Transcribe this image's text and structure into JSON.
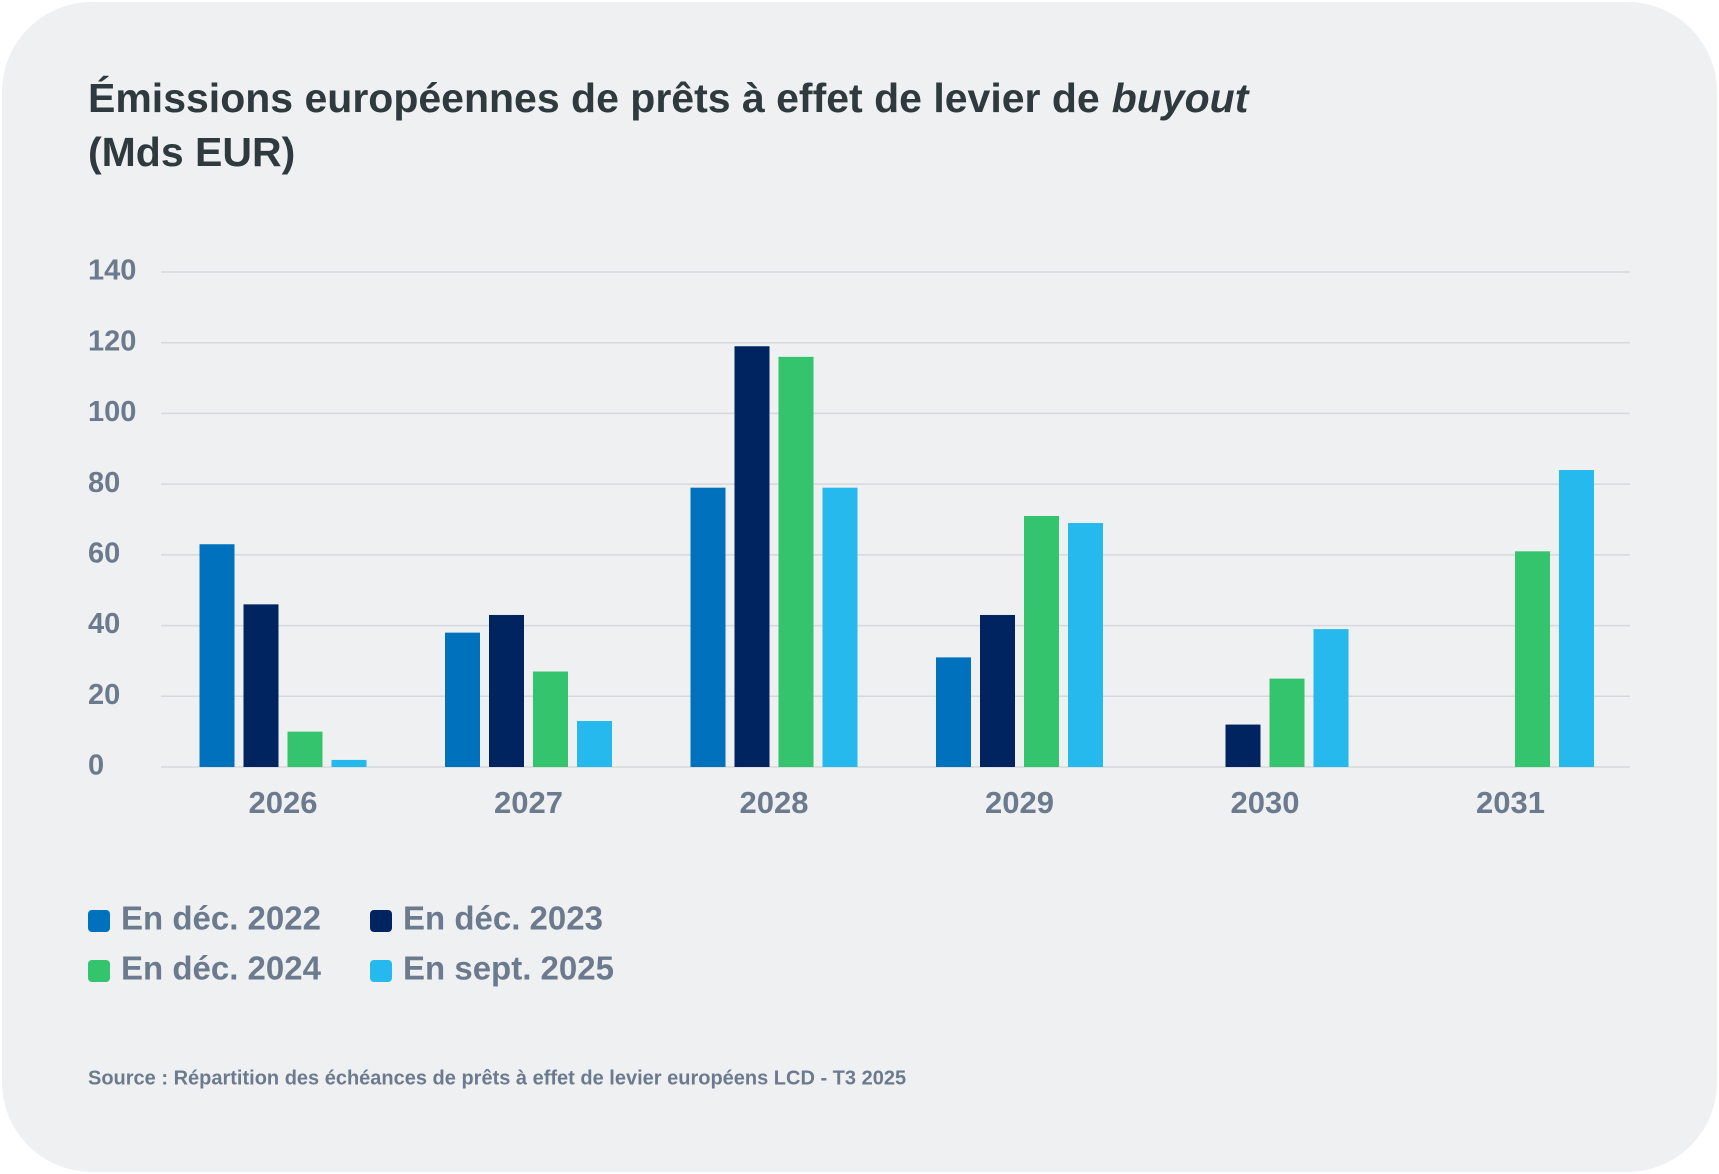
{
  "chart_data": {
    "type": "bar",
    "title": "Émissions européennes de prêts à effet de levier de",
    "title_italic": "buyout",
    "subtitle": "(Mds EUR)",
    "categories": [
      "2026",
      "2027",
      "2028",
      "2029",
      "2030",
      "2031"
    ],
    "series": [
      {
        "name": "En déc. 2022",
        "color": "#0071bc",
        "values": [
          63,
          38,
          79,
          31,
          null,
          null
        ]
      },
      {
        "name": "En déc. 2023",
        "color": "#00245f",
        "values": [
          46,
          43,
          119,
          43,
          12,
          null
        ]
      },
      {
        "name": "En déc. 2024",
        "color": "#33c46d",
        "values": [
          10,
          27,
          116,
          71,
          25,
          61
        ]
      },
      {
        "name": "En sept. 2025",
        "color": "#25b9ee",
        "values": [
          2,
          13,
          79,
          69,
          39,
          84
        ]
      }
    ],
    "ylim": [
      0,
      140
    ],
    "yticks": [
      0,
      20,
      40,
      60,
      80,
      100,
      120,
      140
    ],
    "grid": true,
    "source": "Source : Répartition des échéances de prêts à effet de levier européens LCD - T3 2025"
  }
}
